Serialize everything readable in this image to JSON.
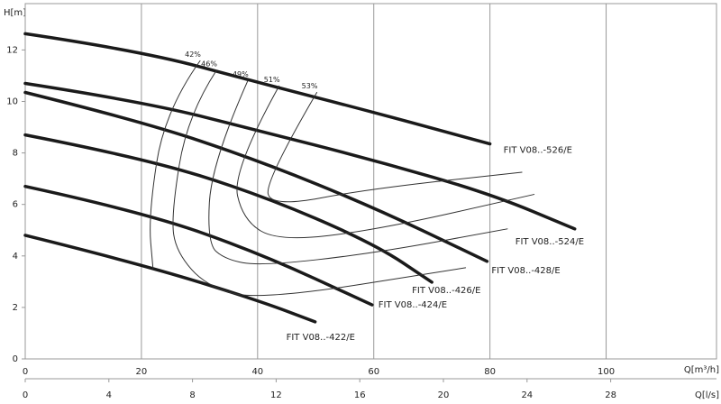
{
  "chart_data": {
    "type": "line",
    "y_label": "H[m]",
    "x_label": "Q[m³/h]",
    "x2_label": "Q[l/s]",
    "xlim": [
      0,
      119
    ],
    "xticks": [
      0,
      20,
      40,
      60,
      80,
      100
    ],
    "x2lim": [
      0,
      33.06
    ],
    "x2ticks": [
      0,
      4,
      8,
      12,
      16,
      20,
      24,
      28
    ],
    "ylim": [
      0,
      13.8
    ],
    "yticks": [
      0,
      2,
      4,
      6,
      8,
      10,
      12
    ],
    "grid": true,
    "series": [
      {
        "name": "FIT V08..-526/E",
        "color": "#1a1a1a",
        "line_width": 3.5,
        "x": [
          0,
          20,
          40,
          60,
          80
        ],
        "values": [
          12.63,
          11.96,
          10.74,
          9.58,
          8.35
        ]
      },
      {
        "name": "FIT V08..-524/E",
        "color": "#1a1a1a",
        "line_width": 3.5,
        "x": [
          0,
          20,
          40,
          60,
          80,
          94.6
        ],
        "values": [
          10.7,
          10.0,
          8.88,
          7.72,
          6.42,
          5.05
        ]
      },
      {
        "name": "FIT V08..-428/E",
        "color": "#1a1a1a",
        "line_width": 3.5,
        "x": [
          0,
          20,
          40,
          60,
          79.5
        ],
        "values": [
          10.35,
          9.23,
          7.72,
          5.89,
          3.79
        ]
      },
      {
        "name": "FIT V08..-426/E",
        "color": "#1a1a1a",
        "line_width": 3.5,
        "x": [
          0,
          20,
          40,
          60,
          70
        ],
        "values": [
          8.7,
          7.82,
          6.42,
          4.49,
          2.98
        ]
      },
      {
        "name": "FIT V08..-424/E",
        "color": "#1a1a1a",
        "line_width": 3.5,
        "x": [
          0,
          20,
          40,
          59.7
        ],
        "values": [
          6.7,
          5.72,
          4.14,
          2.1
        ]
      },
      {
        "name": "FIT V08..-422/E",
        "color": "#1a1a1a",
        "line_width": 3.5,
        "x": [
          0,
          20,
          40,
          49.9
        ],
        "values": [
          4.8,
          3.68,
          2.28,
          1.44
        ]
      },
      {
        "name": "42%",
        "color": "#333333",
        "line_width": 1,
        "x": [
          30.1,
          24,
          21.2,
          22
        ],
        "values": [
          11.58,
          9.65,
          5.54,
          3.5
        ]
      },
      {
        "name": "46%",
        "color": "#333333",
        "line_width": 1,
        "x": [
          32.9,
          27.9,
          25.1,
          26,
          31.3,
          40.6,
          75.8
        ],
        "values": [
          11.2,
          9.47,
          5.54,
          4.14,
          2.8,
          2.28,
          3.54
        ]
      },
      {
        "name": "49%",
        "color": "#333333",
        "line_width": 1,
        "x": [
          38.3,
          32.1,
          31.3,
          34.4,
          40.6,
          60,
          83
        ],
        "values": [
          10.8,
          7.65,
          4.49,
          3.86,
          3.61,
          4.1,
          5.05
        ]
      },
      {
        "name": "51%",
        "color": "#333333",
        "line_width": 1,
        "x": [
          43.7,
          35.6,
          37.5,
          43.7,
          60.8,
          87.6
        ],
        "values": [
          10.6,
          7.3,
          5.37,
          4.56,
          5.02,
          6.39
        ]
      },
      {
        "name": "53%",
        "color": "#333333",
        "line_width": 1,
        "x": [
          50.2,
          41.4,
          42.2,
          59.2,
          85.5
        ],
        "values": [
          10.35,
          6.95,
          5.89,
          6.6,
          7.25
        ]
      }
    ]
  }
}
